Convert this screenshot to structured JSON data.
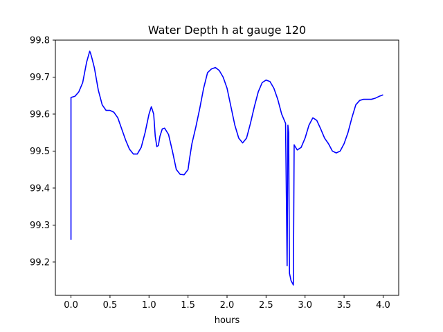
{
  "chart_data": {
    "type": "line",
    "title": "Water Depth h at gauge 120",
    "xlabel": "hours",
    "ylabel": "",
    "xlim": [
      -0.2,
      4.2
    ],
    "ylim": [
      99.11,
      99.8
    ],
    "xticks": [
      0.0,
      0.5,
      1.0,
      1.5,
      2.0,
      2.5,
      3.0,
      3.5,
      4.0
    ],
    "xtick_labels": [
      "0.0",
      "0.5",
      "1.0",
      "1.5",
      "2.0",
      "2.5",
      "3.0",
      "3.5",
      "4.0"
    ],
    "yticks": [
      99.2,
      99.3,
      99.4,
      99.5,
      99.6,
      99.7,
      99.8
    ],
    "ytick_labels": [
      "99.2",
      "99.3",
      "99.4",
      "99.5",
      "99.6",
      "99.7",
      "99.8"
    ],
    "grid": false,
    "series": [
      {
        "color": "#0000ff",
        "x": [
          0.0,
          0.0,
          0.05,
          0.1,
          0.15,
          0.2,
          0.24,
          0.25,
          0.27,
          0.3,
          0.35,
          0.4,
          0.45,
          0.5,
          0.55,
          0.6,
          0.65,
          0.7,
          0.75,
          0.8,
          0.85,
          0.9,
          0.95,
          1.0,
          1.03,
          1.06,
          1.08,
          1.1,
          1.12,
          1.14,
          1.17,
          1.2,
          1.25,
          1.3,
          1.35,
          1.4,
          1.45,
          1.5,
          1.52,
          1.55,
          1.6,
          1.65,
          1.7,
          1.75,
          1.8,
          1.85,
          1.9,
          1.95,
          2.0,
          2.05,
          2.1,
          2.15,
          2.2,
          2.25,
          2.3,
          2.35,
          2.4,
          2.45,
          2.5,
          2.55,
          2.6,
          2.65,
          2.7,
          2.75,
          2.77,
          2.78,
          2.79,
          2.8,
          2.81,
          2.82,
          2.85,
          2.86,
          2.87,
          2.9,
          2.95,
          3.0,
          3.05,
          3.1,
          3.15,
          3.2,
          3.25,
          3.3,
          3.35,
          3.4,
          3.45,
          3.5,
          3.55,
          3.6,
          3.65,
          3.7,
          3.75,
          3.8,
          3.85,
          3.9,
          3.95,
          4.0
        ],
        "y": [
          99.26,
          99.645,
          99.648,
          99.66,
          99.685,
          99.74,
          99.77,
          99.765,
          99.75,
          99.725,
          99.665,
          99.625,
          99.61,
          99.61,
          99.605,
          99.59,
          99.56,
          99.53,
          99.505,
          99.492,
          99.492,
          99.51,
          99.55,
          99.6,
          99.62,
          99.6,
          99.54,
          99.512,
          99.515,
          99.54,
          99.56,
          99.562,
          99.545,
          99.5,
          99.45,
          99.437,
          99.436,
          99.45,
          99.48,
          99.52,
          99.565,
          99.615,
          99.67,
          99.712,
          99.722,
          99.726,
          99.718,
          99.7,
          99.67,
          99.62,
          99.57,
          99.535,
          99.522,
          99.535,
          99.575,
          99.62,
          99.66,
          99.685,
          99.692,
          99.688,
          99.67,
          99.64,
          99.6,
          99.575,
          99.19,
          99.57,
          99.55,
          99.17,
          99.16,
          99.15,
          99.138,
          99.517,
          99.513,
          99.503,
          99.51,
          99.535,
          99.57,
          99.59,
          99.583,
          99.56,
          99.535,
          99.52,
          99.5,
          99.495,
          99.5,
          99.52,
          99.55,
          99.59,
          99.625,
          99.637,
          99.64,
          99.64,
          99.64,
          99.643,
          99.648,
          99.652
        ]
      }
    ]
  }
}
